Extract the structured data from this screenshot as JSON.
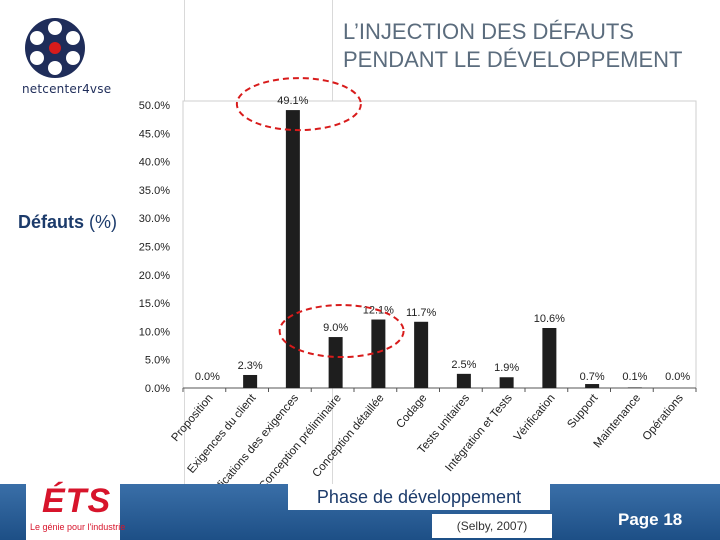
{
  "branding": {
    "top_logo_text": "netcenter4vse",
    "bottom_logo_mark": "ÉTS",
    "bottom_logo_tagline": "Le génie pour l'industrie"
  },
  "slide": {
    "title_line1": "L’INJECTION DES DÉFAUTS",
    "title_line2": "PENDANT LE DÉVELOPPEMENT",
    "ylabel_main": "Défauts",
    "ylabel_unit": "(%)",
    "xlabel_main": "Phase de développement",
    "citation": "(Selby, 2007)",
    "page_label": "Page 18"
  },
  "colors": {
    "bar": "#1e1e1e",
    "highlight_ellipse": "#d81b1b",
    "title": "#5b6c7d",
    "accent_blue": "#1c3b6b"
  },
  "chart_data": {
    "type": "bar",
    "title": "",
    "xlabel": "Phase de développement",
    "ylabel": "Défauts (%)",
    "ylim": [
      0,
      50
    ],
    "y_ticks": [
      "50.0%",
      "45.0%",
      "40.0%",
      "35.0%",
      "30.0%",
      "25.0%",
      "20.0%",
      "15.0%",
      "10.0%",
      "5.0%",
      "0.0%"
    ],
    "y_tick_values": [
      50,
      45,
      40,
      35,
      30,
      25,
      20,
      15,
      10,
      5,
      0
    ],
    "categories": [
      "Proposition",
      "Exigences du client",
      "Spécifications des exigences",
      "Conception préliminaire",
      "Conception détaillée",
      "Codage",
      "Tests unitaires",
      "Intégration et Tests",
      "Vérification",
      "Support",
      "Maintenance",
      "Opérations"
    ],
    "values": [
      0.0,
      2.3,
      49.1,
      9.0,
      12.1,
      11.7,
      2.5,
      1.9,
      10.6,
      0.7,
      0.1,
      0.0
    ],
    "data_labels": [
      "0.0%",
      "2.3%",
      "49.1%",
      "9.0%",
      "12.1%",
      "11.7%",
      "2.5%",
      "1.9%",
      "10.6%",
      "0.7%",
      "0.1%",
      "0.0%"
    ],
    "highlighted_categories": [
      "Spécifications des exigences",
      "Conception préliminaire"
    ],
    "grid": false
  }
}
